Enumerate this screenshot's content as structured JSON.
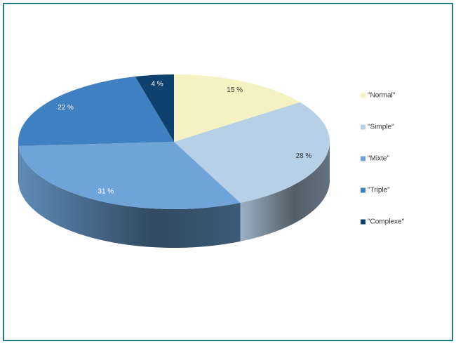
{
  "chart_data": {
    "type": "pie3d",
    "categories": [
      "\"Normal\"",
      "\"Simple\"",
      "\"Mixte\"",
      "\"Triple\"",
      "\"Complexe\""
    ],
    "values": [
      15,
      28,
      31,
      22,
      4
    ],
    "value_labels": [
      "15 %",
      "28 %",
      "31 %",
      "22 %",
      "4 %"
    ],
    "colors": [
      "#f4f2c2",
      "#b7d0e6",
      "#6fa4d8",
      "#3f80c0",
      "#0f416e"
    ],
    "legend": "right"
  }
}
